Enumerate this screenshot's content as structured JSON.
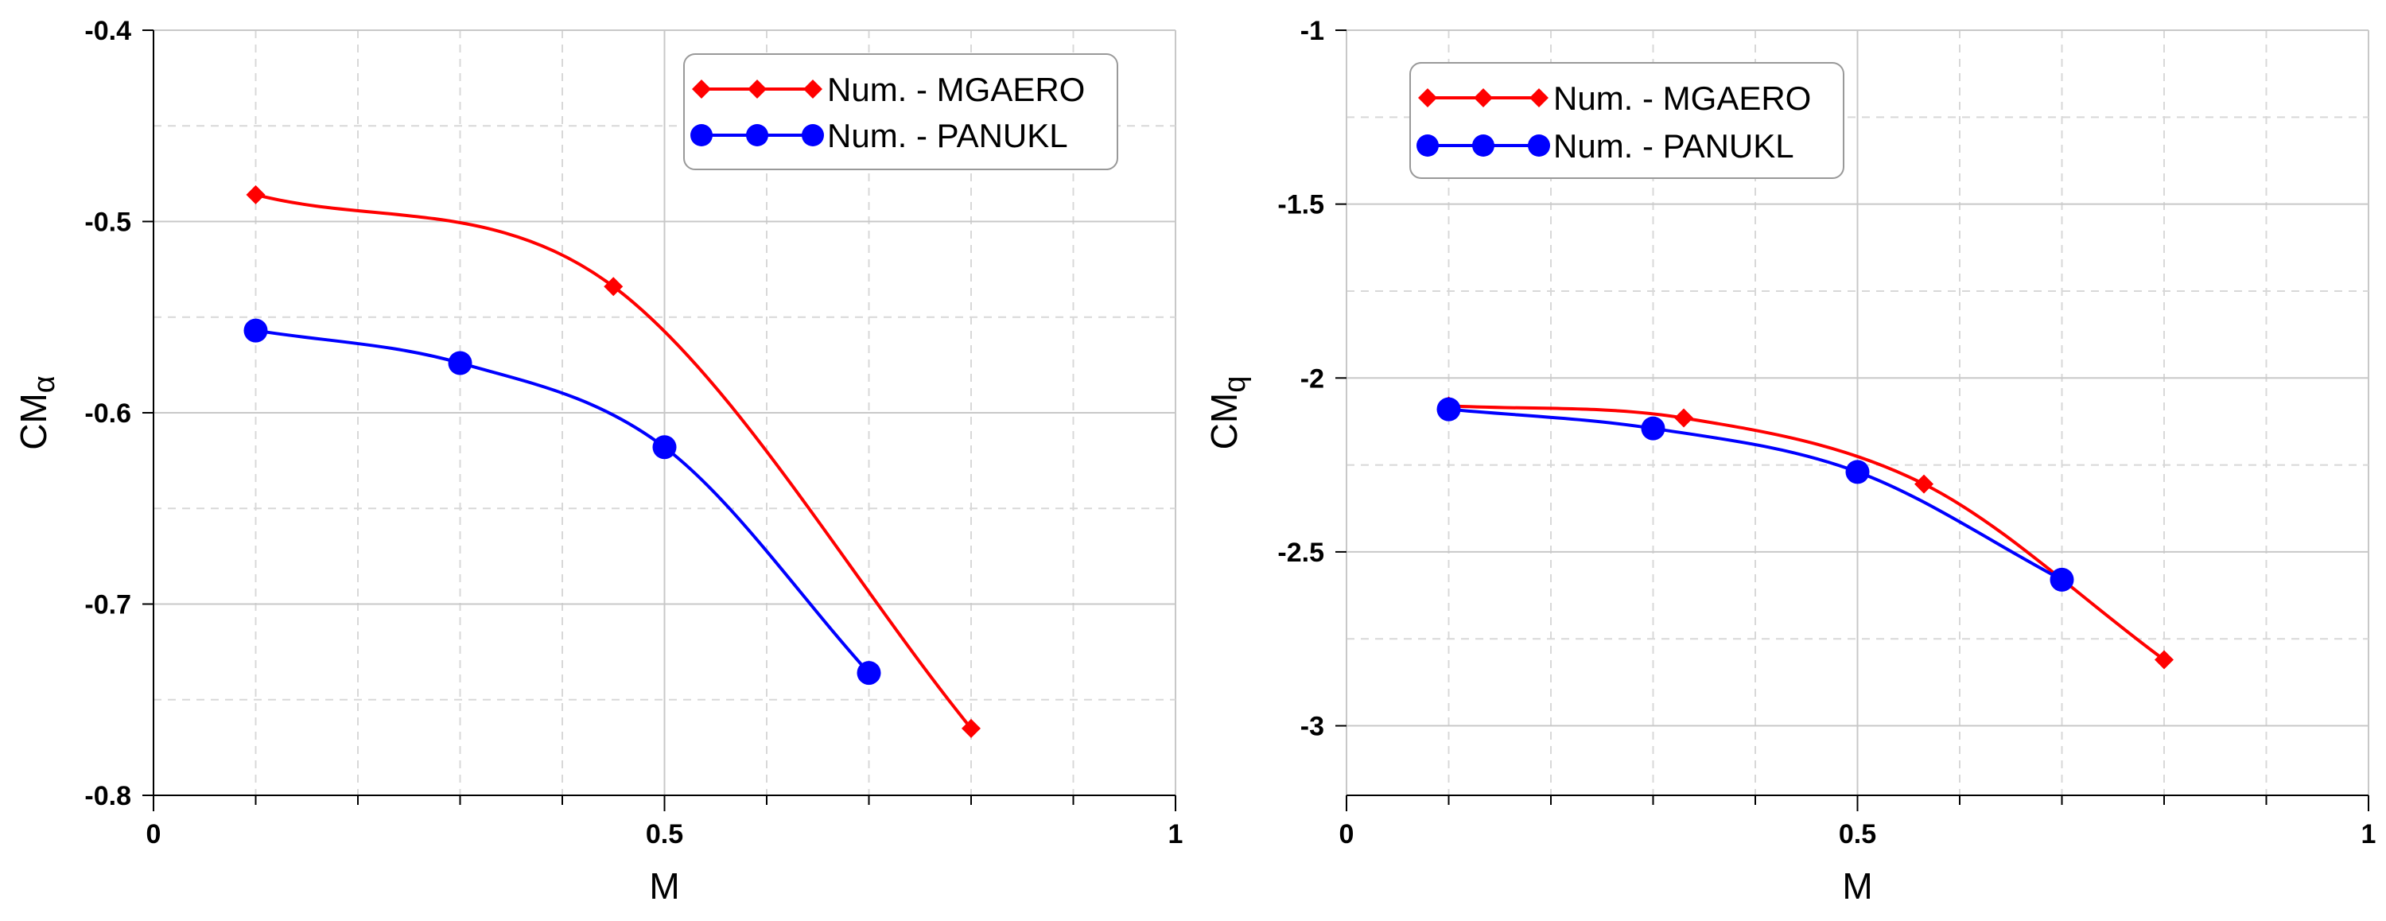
{
  "colors": {
    "mgaero": "#ff0000",
    "panukl": "#0000ff",
    "grid_major": "#c8c8c8",
    "grid_minor": "#d8d8d8",
    "axis": "#000000"
  },
  "chart_data": [
    {
      "type": "line",
      "xlabel": "M",
      "ylabel": "CM",
      "ylabel_sub": "α",
      "xlim": [
        0,
        1
      ],
      "ylim": [
        -0.8,
        -0.4
      ],
      "x_ticks": [
        0,
        0.5,
        1
      ],
      "x_tick_labels": [
        "0",
        "0.5",
        "1"
      ],
      "y_ticks": [
        -0.4,
        -0.5,
        -0.6,
        -0.7,
        -0.8
      ],
      "y_tick_labels": [
        "-0.4",
        "-0.5",
        "-0.6",
        "-0.7",
        "-0.8"
      ],
      "legend_position": "top-right",
      "series": [
        {
          "name": "Num. - MGAERO",
          "marker": "diamond",
          "color_key": "mgaero",
          "x": [
            0.1,
            0.45,
            0.8
          ],
          "y": [
            -0.486,
            -0.534,
            -0.765
          ]
        },
        {
          "name": "Num. - PANUKL",
          "marker": "circle",
          "color_key": "panukl",
          "x": [
            0.1,
            0.3,
            0.5,
            0.7
          ],
          "y": [
            -0.557,
            -0.574,
            -0.618,
            -0.736
          ]
        }
      ]
    },
    {
      "type": "line",
      "xlabel": "M",
      "ylabel": "CM",
      "ylabel_sub": "q",
      "xlim": [
        0,
        1
      ],
      "ylim": [
        -3.2,
        -1
      ],
      "x_ticks": [
        0,
        0.5,
        1
      ],
      "x_tick_labels": [
        "0",
        "0.5",
        "1"
      ],
      "y_ticks": [
        -1,
        -1.5,
        -2,
        -2.5,
        -3
      ],
      "y_tick_labels": [
        "-1",
        "-1.5",
        "-2",
        "-2.5",
        "-3"
      ],
      "legend_position": "top-left",
      "series": [
        {
          "name": "Num. - MGAERO",
          "marker": "diamond",
          "color_key": "mgaero",
          "x": [
            0.1,
            0.33,
            0.565,
            0.8
          ],
          "y": [
            -2.08,
            -2.115,
            -2.305,
            -2.81
          ]
        },
        {
          "name": "Num. - PANUKL",
          "marker": "circle",
          "color_key": "panukl",
          "x": [
            0.1,
            0.3,
            0.5,
            0.7
          ],
          "y": [
            -2.09,
            -2.145,
            -2.27,
            -2.58
          ]
        }
      ]
    }
  ]
}
